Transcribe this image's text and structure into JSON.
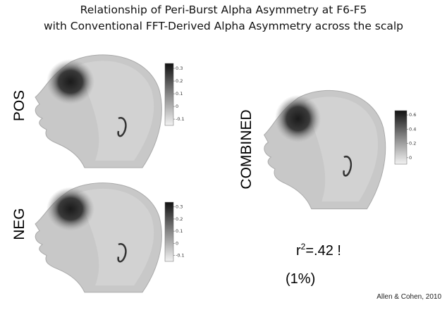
{
  "title": [
    "Relationship of Peri-Burst Alpha Asymmetry at F6-F5",
    "with Conventional FFT-Derived Alpha Asymmetry across the scalp"
  ],
  "panels": [
    {
      "label": "POS",
      "colorbar_ticks": [
        "0.3",
        "0.2",
        "0.1",
        "0",
        "-0.1"
      ]
    },
    {
      "label": "NEG",
      "colorbar_ticks": [
        "0.3",
        "0.2",
        "0.1",
        "0",
        "-0.1"
      ]
    },
    {
      "label": "COMBINED",
      "colorbar_ticks": [
        "0.6",
        "0.4",
        "0.2",
        "0"
      ]
    }
  ],
  "stat": {
    "base": "r",
    "sup": "2",
    "rest": "=.42 !",
    "percent": "(1%)"
  },
  "citation": "Allen & Cohen, 2010"
}
